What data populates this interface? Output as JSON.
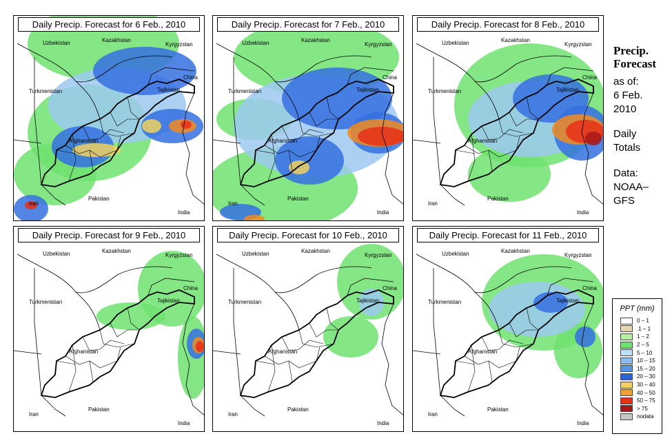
{
  "panels": [
    {
      "title": "Daily Precip. Forecast for  6 Feb., 2010",
      "blobs": [
        {
          "c": "#6ee26e",
          "x": 130,
          "y": 40,
          "rx": 110,
          "ry": 55
        },
        {
          "c": "#6ee26e",
          "x": 60,
          "y": 230,
          "rx": 60,
          "ry": 45
        },
        {
          "c": "#6ee26e",
          "x": 110,
          "y": 170,
          "rx": 90,
          "ry": 70
        },
        {
          "c": "#9cc8f0",
          "x": 150,
          "y": 130,
          "rx": 100,
          "ry": 55
        },
        {
          "c": "#3570e0",
          "x": 190,
          "y": 80,
          "rx": 75,
          "ry": 35
        },
        {
          "c": "#3570e0",
          "x": 230,
          "y": 160,
          "rx": 45,
          "ry": 25
        },
        {
          "c": "#3570e0",
          "x": 100,
          "y": 190,
          "rx": 45,
          "ry": 30
        },
        {
          "c": "#3570e0",
          "x": 25,
          "y": 280,
          "rx": 25,
          "ry": 20
        },
        {
          "c": "#f0d060",
          "x": 120,
          "y": 195,
          "rx": 35,
          "ry": 10
        },
        {
          "c": "#f0d060",
          "x": 200,
          "y": 160,
          "rx": 14,
          "ry": 10
        },
        {
          "c": "#f08a20",
          "x": 245,
          "y": 160,
          "rx": 20,
          "ry": 10
        },
        {
          "c": "#e83018",
          "x": 250,
          "y": 158,
          "rx": 8,
          "ry": 6
        },
        {
          "c": "#e83018",
          "x": 25,
          "y": 275,
          "rx": 9,
          "ry": 6
        }
      ]
    },
    {
      "title": "Daily Precip. Forecast for  7 Feb., 2010",
      "blobs": [
        {
          "c": "#6ee26e",
          "x": 150,
          "y": 60,
          "rx": 120,
          "ry": 55
        },
        {
          "c": "#6ee26e",
          "x": 100,
          "y": 250,
          "rx": 110,
          "ry": 60
        },
        {
          "c": "#6ee26e",
          "x": 60,
          "y": 150,
          "rx": 55,
          "ry": 30
        },
        {
          "c": "#9cc8f0",
          "x": 150,
          "y": 160,
          "rx": 120,
          "ry": 75
        },
        {
          "c": "#3570e0",
          "x": 180,
          "y": 120,
          "rx": 80,
          "ry": 45
        },
        {
          "c": "#3570e0",
          "x": 140,
          "y": 210,
          "rx": 50,
          "ry": 35
        },
        {
          "c": "#3570e0",
          "x": 40,
          "y": 285,
          "rx": 30,
          "ry": 12
        },
        {
          "c": "#3570e0",
          "x": 240,
          "y": 170,
          "rx": 40,
          "ry": 30
        },
        {
          "c": "#f0d060",
          "x": 125,
          "y": 220,
          "rx": 15,
          "ry": 10
        },
        {
          "c": "#f08a20",
          "x": 240,
          "y": 170,
          "rx": 45,
          "ry": 20
        },
        {
          "c": "#e83018",
          "x": 245,
          "y": 175,
          "rx": 35,
          "ry": 14
        },
        {
          "c": "#f08a20",
          "x": 60,
          "y": 295,
          "rx": 15,
          "ry": 6
        }
      ]
    },
    {
      "title": "Daily Precip. Forecast for  8 Feb., 2010",
      "blobs": [
        {
          "c": "#6ee26e",
          "x": 170,
          "y": 130,
          "rx": 110,
          "ry": 90
        },
        {
          "c": "#6ee26e",
          "x": 140,
          "y": 230,
          "rx": 60,
          "ry": 40
        },
        {
          "c": "#9cc8f0",
          "x": 170,
          "y": 150,
          "rx": 90,
          "ry": 55
        },
        {
          "c": "#3570e0",
          "x": 200,
          "y": 120,
          "rx": 55,
          "ry": 35
        },
        {
          "c": "#3570e0",
          "x": 245,
          "y": 170,
          "rx": 40,
          "ry": 40
        },
        {
          "c": "#f08a20",
          "x": 240,
          "y": 165,
          "rx": 38,
          "ry": 22
        },
        {
          "c": "#e83018",
          "x": 250,
          "y": 168,
          "rx": 28,
          "ry": 17
        },
        {
          "c": "#a81818",
          "x": 262,
          "y": 178,
          "rx": 12,
          "ry": 10
        }
      ]
    },
    {
      "title": "Daily Precip. Forecast for  9 Feb., 2010",
      "blobs": [
        {
          "c": "#6ee26e",
          "x": 230,
          "y": 90,
          "rx": 50,
          "ry": 55
        },
        {
          "c": "#6ee26e",
          "x": 170,
          "y": 130,
          "rx": 50,
          "ry": 20
        },
        {
          "c": "#6ee26e",
          "x": 260,
          "y": 190,
          "rx": 22,
          "ry": 60
        },
        {
          "c": "#3570e0",
          "x": 265,
          "y": 170,
          "rx": 14,
          "ry": 22
        },
        {
          "c": "#f08a20",
          "x": 268,
          "y": 172,
          "rx": 9,
          "ry": 12
        },
        {
          "c": "#e83018",
          "x": 270,
          "y": 174,
          "rx": 6,
          "ry": 8
        }
      ]
    },
    {
      "title": "Daily Precip. Forecast for  10 Feb., 2010",
      "blobs": [
        {
          "c": "#6ee26e",
          "x": 230,
          "y": 80,
          "rx": 50,
          "ry": 55
        },
        {
          "c": "#6ee26e",
          "x": 200,
          "y": 160,
          "rx": 40,
          "ry": 30
        },
        {
          "c": "#9cc8f0",
          "x": 230,
          "y": 110,
          "rx": 18,
          "ry": 20
        }
      ]
    },
    {
      "title": "Daily Precip. Forecast for  11 Feb., 2010",
      "blobs": [
        {
          "c": "#6ee26e",
          "x": 190,
          "y": 110,
          "rx": 90,
          "ry": 70
        },
        {
          "c": "#6ee26e",
          "x": 240,
          "y": 180,
          "rx": 35,
          "ry": 40
        },
        {
          "c": "#9cc8f0",
          "x": 180,
          "y": 120,
          "rx": 70,
          "ry": 40
        },
        {
          "c": "#3570e0",
          "x": 200,
          "y": 110,
          "rx": 25,
          "ry": 15
        },
        {
          "c": "#3570e0",
          "x": 250,
          "y": 160,
          "rx": 15,
          "ry": 15
        }
      ]
    }
  ],
  "labels": {
    "kazakhstan": "Kazakhstan",
    "uzbekistan": "Uzbekistan",
    "kyrgyzstan": "Kyrgyzstan",
    "turkmenistan": "Turkmenistan",
    "tajikistan": "Tajikistan",
    "china": "China",
    "afghanistan": "Afghanistan",
    "pakistan": "Pakistan",
    "iran": "Iran",
    "india": "India"
  },
  "side": {
    "title_line1": "Precip.",
    "title_line2": "Forecast",
    "asof": "as of:",
    "date1": "6 Feb.",
    "date2": "2010",
    "daily": "Daily",
    "totals": "Totals",
    "data": "Data:",
    "source1": "NOAA–",
    "source2": "GFS"
  },
  "legend": {
    "title": "PPT (mm)",
    "items": [
      {
        "label": "0 – 1",
        "color": "#ffffff"
      },
      {
        "label": ".1 – 1",
        "color": "#e8d4b0"
      },
      {
        "label": "1 – 2",
        "color": "#b8f0a0"
      },
      {
        "label": "2 – 5",
        "color": "#6ee26e"
      },
      {
        "label": "5 – 10",
        "color": "#bde0f8"
      },
      {
        "label": "10 – 15",
        "color": "#8cbcf0"
      },
      {
        "label": "15 – 20",
        "color": "#5a94e8"
      },
      {
        "label": "20 – 30",
        "color": "#2a64d8"
      },
      {
        "label": "30 – 40",
        "color": "#f0d060"
      },
      {
        "label": "40 – 50",
        "color": "#f0a030"
      },
      {
        "label": "50 – 75",
        "color": "#e83018"
      },
      {
        "label": "> 75",
        "color": "#a81818"
      },
      {
        "label": "nodata",
        "color": "#c8c8c8"
      }
    ]
  }
}
